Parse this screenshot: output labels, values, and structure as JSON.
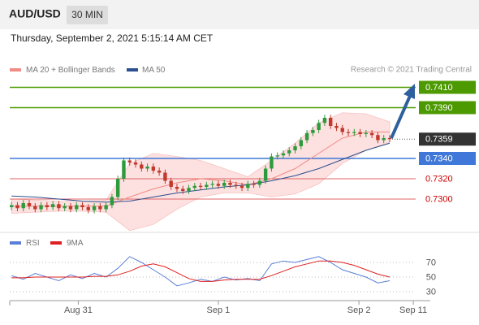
{
  "header": {
    "symbol": "AUD/USD",
    "timeframe": "30 MIN",
    "datetime": "Thursday, September 2, 2021 5:15:14 AM CET",
    "credit": "Research © 2021 Trading Central"
  },
  "chart_data": [
    {
      "type": "candlestick",
      "xlim": [
        -0.3,
        68.4
      ],
      "ylim": [
        0.7272,
        0.7416
      ],
      "candles": {
        "up_color": "#2e9a3e",
        "down_color": "#c0392b",
        "x": [
          0,
          1,
          2,
          3,
          4,
          5,
          6,
          7,
          8,
          9,
          10,
          11,
          12,
          13,
          14,
          15,
          16,
          17,
          18,
          19,
          20,
          21,
          22,
          23,
          24,
          25,
          26,
          27,
          28,
          29,
          30,
          31,
          32,
          33,
          34,
          35,
          36,
          37,
          38,
          39,
          40,
          41,
          42,
          43,
          44,
          45,
          46,
          47,
          48,
          49,
          50,
          51,
          52,
          53,
          54,
          55,
          56,
          57,
          58,
          59,
          60,
          61,
          62,
          63,
          64
        ],
        "open": [
          0.7292,
          0.7294,
          0.7291,
          0.7296,
          0.7293,
          0.729,
          0.7294,
          0.7292,
          0.7295,
          0.7291,
          0.7293,
          0.729,
          0.7294,
          0.7292,
          0.7289,
          0.7293,
          0.729,
          0.7294,
          0.7302,
          0.732,
          0.7338,
          0.7336,
          0.7334,
          0.733,
          0.7332,
          0.7328,
          0.7326,
          0.7318,
          0.7312,
          0.731,
          0.7308,
          0.7311,
          0.7313,
          0.7312,
          0.7314,
          0.7315,
          0.7313,
          0.7316,
          0.7314,
          0.7313,
          0.7311,
          0.7315,
          0.7314,
          0.7318,
          0.733,
          0.7342,
          0.7343,
          0.7345,
          0.7348,
          0.7352,
          0.7358,
          0.7365,
          0.7368,
          0.7375,
          0.738,
          0.7372,
          0.737,
          0.7366,
          0.7365,
          0.7366,
          0.7364,
          0.7365,
          0.7363,
          0.7358,
          0.736
        ],
        "high": [
          0.7297,
          0.7297,
          0.7299,
          0.7299,
          0.7296,
          0.7297,
          0.7297,
          0.7298,
          0.7298,
          0.7296,
          0.7296,
          0.7297,
          0.7297,
          0.7295,
          0.7296,
          0.7296,
          0.7297,
          0.7305,
          0.7323,
          0.7341,
          0.7341,
          0.7339,
          0.7337,
          0.7335,
          0.7335,
          0.7331,
          0.7329,
          0.7321,
          0.7315,
          0.7313,
          0.7314,
          0.7316,
          0.7316,
          0.7317,
          0.7318,
          0.7318,
          0.7319,
          0.7319,
          0.7317,
          0.7316,
          0.7318,
          0.7318,
          0.7321,
          0.7333,
          0.7345,
          0.7346,
          0.7348,
          0.7351,
          0.7355,
          0.7361,
          0.7368,
          0.7371,
          0.7378,
          0.7383,
          0.7383,
          0.7375,
          0.7373,
          0.7369,
          0.7369,
          0.7369,
          0.7368,
          0.7368,
          0.7366,
          0.7363,
          0.7363
        ],
        "low": [
          0.7289,
          0.7288,
          0.7288,
          0.729,
          0.7287,
          0.7287,
          0.7289,
          0.7289,
          0.7288,
          0.7288,
          0.7287,
          0.7287,
          0.7289,
          0.7286,
          0.7286,
          0.7287,
          0.7287,
          0.7291,
          0.7299,
          0.7317,
          0.7333,
          0.7331,
          0.7327,
          0.7327,
          0.7325,
          0.7323,
          0.7315,
          0.7309,
          0.7307,
          0.7305,
          0.7305,
          0.7308,
          0.7309,
          0.7309,
          0.7311,
          0.731,
          0.731,
          0.7311,
          0.731,
          0.7308,
          0.7308,
          0.7311,
          0.7311,
          0.7315,
          0.7327,
          0.7339,
          0.734,
          0.7342,
          0.7345,
          0.7349,
          0.7355,
          0.7362,
          0.7365,
          0.7372,
          0.7369,
          0.7367,
          0.7363,
          0.7362,
          0.7362,
          0.7361,
          0.7361,
          0.736,
          0.7355,
          0.7355,
          0.7356
        ],
        "close": [
          0.7294,
          0.7291,
          0.7296,
          0.7293,
          0.729,
          0.7294,
          0.7292,
          0.7295,
          0.7291,
          0.7293,
          0.729,
          0.7294,
          0.7292,
          0.7289,
          0.7293,
          0.729,
          0.7294,
          0.7302,
          0.732,
          0.7338,
          0.7336,
          0.7334,
          0.733,
          0.7332,
          0.7328,
          0.7326,
          0.7318,
          0.7312,
          0.731,
          0.7308,
          0.7311,
          0.7313,
          0.7312,
          0.7314,
          0.7315,
          0.7313,
          0.7316,
          0.7314,
          0.7313,
          0.7311,
          0.7315,
          0.7314,
          0.7318,
          0.733,
          0.7342,
          0.7343,
          0.7345,
          0.7348,
          0.7352,
          0.7358,
          0.7365,
          0.7368,
          0.7375,
          0.738,
          0.7372,
          0.737,
          0.7366,
          0.7365,
          0.7366,
          0.7364,
          0.7365,
          0.7363,
          0.7358,
          0.736,
          0.7359
        ]
      },
      "series": [
        {
          "name": "MA 20 + Bollinger Bands",
          "color": "#f08c84",
          "band_color": "#fde0e0",
          "x": [
            0,
            4,
            8,
            12,
            16,
            20,
            24,
            28,
            32,
            36,
            40,
            44,
            48,
            52,
            56,
            60,
            64
          ],
          "values": [
            0.7293,
            0.7293,
            0.7293,
            0.7293,
            0.7293,
            0.7302,
            0.731,
            0.7316,
            0.732,
            0.7318,
            0.7314,
            0.732,
            0.733,
            0.7345,
            0.736,
            0.7366,
            0.7366
          ],
          "upper": [
            0.73,
            0.7299,
            0.7298,
            0.7298,
            0.7299,
            0.7335,
            0.7345,
            0.7342,
            0.7338,
            0.733,
            0.7322,
            0.7338,
            0.7355,
            0.7375,
            0.7385,
            0.7384,
            0.7376
          ],
          "lower": [
            0.7286,
            0.7287,
            0.7288,
            0.7288,
            0.7287,
            0.7269,
            0.7275,
            0.729,
            0.7302,
            0.7306,
            0.7306,
            0.7302,
            0.7305,
            0.7315,
            0.7335,
            0.7348,
            0.7356
          ]
        },
        {
          "name": "MA 50",
          "color": "#2b4f8f",
          "x": [
            0,
            4,
            8,
            12,
            16,
            20,
            24,
            28,
            32,
            36,
            40,
            44,
            48,
            52,
            56,
            60,
            64
          ],
          "values": [
            0.7303,
            0.7302,
            0.73,
            0.7298,
            0.7297,
            0.7298,
            0.7302,
            0.7306,
            0.7309,
            0.7312,
            0.7314,
            0.7318,
            0.7323,
            0.733,
            0.7339,
            0.7348,
            0.7355
          ]
        }
      ],
      "levels": [
        {
          "value": 0.741,
          "label": "0.7410",
          "color": "#4c9a00",
          "style": "box"
        },
        {
          "value": 0.739,
          "label": "0.7390",
          "color": "#4c9a00",
          "style": "box"
        },
        {
          "value": 0.734,
          "label": "0.7340",
          "color": "#3f78d8",
          "style": "box"
        },
        {
          "value": 0.732,
          "label": "0.7320",
          "color": "#e06666",
          "style": "text"
        },
        {
          "value": 0.73,
          "label": "0.7300",
          "color": "#e06666",
          "style": "text"
        }
      ],
      "last": {
        "value": 0.7359,
        "label": "0.7359",
        "color": "#333333"
      }
    },
    {
      "type": "line",
      "xlim": [
        -0.3,
        68.4
      ],
      "ylim": [
        20,
        90
      ],
      "yticks": [
        70,
        50,
        30
      ],
      "xticks": [
        {
          "value": 11.3,
          "label": "Aug 31"
        },
        {
          "value": 35,
          "label": "Sep 1"
        },
        {
          "value": 58.8,
          "label": "Sep 2"
        },
        {
          "value": 68,
          "label": "Sep 11"
        }
      ],
      "x": [
        0,
        2,
        4,
        6,
        8,
        10,
        12,
        14,
        16,
        18,
        20,
        22,
        24,
        26,
        28,
        30,
        32,
        34,
        36,
        38,
        40,
        42,
        44,
        46,
        48,
        50,
        52,
        54,
        56,
        58,
        60,
        62,
        64
      ],
      "series": [
        {
          "name": "RSI",
          "color": "#5b7fd6",
          "values": [
            52,
            47,
            55,
            50,
            45,
            53,
            48,
            55,
            50,
            62,
            78,
            70,
            60,
            50,
            38,
            42,
            47,
            44,
            50,
            46,
            48,
            45,
            68,
            72,
            70,
            74,
            78,
            70,
            60,
            55,
            50,
            42,
            45
          ]
        },
        {
          "name": "9MA",
          "color": "#e02020",
          "values": [
            49,
            49,
            50,
            50,
            50,
            50,
            50,
            51,
            51,
            53,
            58,
            65,
            68,
            64,
            56,
            48,
            44,
            44,
            46,
            47,
            47,
            47,
            52,
            58,
            64,
            68,
            72,
            72,
            70,
            66,
            60,
            54,
            50
          ]
        }
      ]
    }
  ]
}
